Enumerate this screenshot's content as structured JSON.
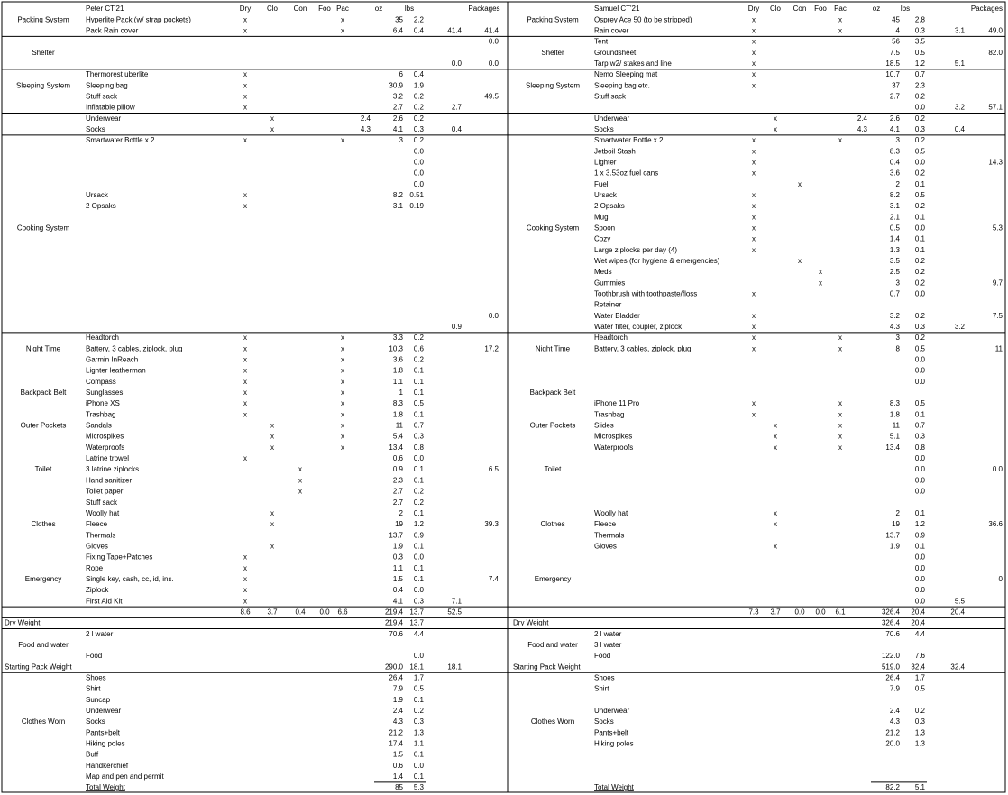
{
  "left": {
    "rows": [
      {
        "item": "Peter CT'21",
        "dry": "Dry",
        "clo": "Clo",
        "con": "Con",
        "foo": "Foo",
        "pac": "Pac",
        "oz": "oz",
        "lbs": "lbs",
        "pk": "Packages"
      },
      {
        "g": "Packing System",
        "item": "Hyperlite Pack (w/ strap pockets)",
        "dry": "x",
        "pac": "x",
        "oz": "35",
        "lbs": "2.2"
      },
      {
        "item": "Pack Rain cover",
        "dry": "x",
        "pac": "x",
        "oz": "6.4",
        "lbs": "0.4",
        "sub": "41.4",
        "pk": "41.4"
      },
      {
        "pk": "0.0"
      },
      {
        "g": "Shelter"
      },
      {
        "sub": "0.0",
        "pk": "0.0"
      },
      {
        "item": "Thermorest uberlite",
        "dry": "x",
        "oz": "6",
        "lbs": "0.4"
      },
      {
        "g": "Sleeping System",
        "item": "Sleeping bag",
        "dry": "x",
        "oz": "30.9",
        "lbs": "1.9"
      },
      {
        "item": "Stuff sack",
        "dry": "x",
        "oz": "3.2",
        "lbs": "0.2",
        "pk": "49.5"
      },
      {
        "item": "Inflatable pillow",
        "dry": "x",
        "oz": "2.7",
        "lbs": "0.2",
        "sub": "2.7"
      },
      {
        "item": "Underwear",
        "clo": "x",
        "ext": "2.4",
        "oz": "2.6",
        "lbs": "0.2"
      },
      {
        "item": "Socks",
        "clo": "x",
        "ext": "4.3",
        "oz": "4.1",
        "lbs": "0.3",
        "sub": "0.4"
      },
      {
        "item": "Smartwater Bottle x 2",
        "dry": "x",
        "pac": "x",
        "oz": "3",
        "lbs": "0.2"
      },
      {
        "lbs": "0.0"
      },
      {
        "lbs": "0.0"
      },
      {
        "lbs": "0.0"
      },
      {
        "lbs": "0.0"
      },
      {
        "item": "Ursack",
        "dry": "x",
        "oz": "8.2",
        "lbs": "0.51"
      },
      {
        "item": "2 Opsaks",
        "dry": "x",
        "oz": "3.1",
        "lbs": "0.19"
      },
      {},
      {
        "g": "Cooking System"
      },
      {},
      {},
      {},
      {},
      {},
      {},
      {},
      {
        "pk": "0.0"
      },
      {
        "sub": "0.9"
      },
      {
        "item": "Headtorch",
        "dry": "x",
        "pac": "x",
        "oz": "3.3",
        "lbs": "0.2"
      },
      {
        "g": "Night Time",
        "item": "Battery, 3 cables, ziplock, plug",
        "dry": "x",
        "pac": "x",
        "oz": "10.3",
        "lbs": "0.6",
        "pk": "17.2"
      },
      {
        "item": "Garmin InReach",
        "dry": "x",
        "pac": "x",
        "oz": "3.6",
        "lbs": "0.2"
      },
      {
        "item": "Lighter leatherman",
        "dry": "x",
        "pac": "x",
        "oz": "1.8",
        "lbs": "0.1"
      },
      {
        "item": "Compass",
        "dry": "x",
        "pac": "x",
        "oz": "1.1",
        "lbs": "0.1"
      },
      {
        "g": "Backpack Belt",
        "item": "Sunglasses",
        "dry": "x",
        "pac": "x",
        "oz": "1",
        "lbs": "0.1"
      },
      {
        "item": "iPhone XS",
        "dry": "x",
        "pac": "x",
        "oz": "8.3",
        "lbs": "0.5"
      },
      {
        "item": "Trashbag",
        "dry": "x",
        "pac": "x",
        "oz": "1.8",
        "lbs": "0.1"
      },
      {
        "g": "Outer Pockets",
        "item": "Sandals",
        "clo": "x",
        "pac": "x",
        "oz": "11",
        "lbs": "0.7"
      },
      {
        "item": "Microspikes",
        "clo": "x",
        "pac": "x",
        "oz": "5.4",
        "lbs": "0.3"
      },
      {
        "item": "Waterproofs",
        "clo": "x",
        "pac": "x",
        "oz": "13.4",
        "lbs": "0.8"
      },
      {
        "item": "Latrine trowel",
        "dry": "x",
        "oz": "0.6",
        "lbs": "0.0"
      },
      {
        "g": "Toilet",
        "item": "3 latrine ziplocks",
        "con": "x",
        "oz": "0.9",
        "lbs": "0.1",
        "pk": "6.5"
      },
      {
        "item": "Hand sanitizer",
        "con": "x",
        "oz": "2.3",
        "lbs": "0.1"
      },
      {
        "item": "Toilet paper",
        "con": "x",
        "oz": "2.7",
        "lbs": "0.2"
      },
      {
        "item": "Stuff sack",
        "oz": "2.7",
        "lbs": "0.2"
      },
      {
        "item": "Woolly hat",
        "clo": "x",
        "oz": "2",
        "lbs": "0.1"
      },
      {
        "g": "Clothes",
        "item": "Fleece",
        "clo": "x",
        "oz": "19",
        "lbs": "1.2",
        "pk": "39.3"
      },
      {
        "item": "Thermals",
        "oz": "13.7",
        "lbs": "0.9"
      },
      {
        "item": "Gloves",
        "clo": "x",
        "oz": "1.9",
        "lbs": "0.1"
      },
      {
        "item": "Fixing Tape+Patches",
        "dry": "x",
        "oz": "0.3",
        "lbs": "0.0"
      },
      {
        "item": "Rope",
        "dry": "x",
        "oz": "1.1",
        "lbs": "0.1"
      },
      {
        "g": "Emergency",
        "item": "Single key, cash, cc, id, ins.",
        "dry": "x",
        "oz": "1.5",
        "lbs": "0.1",
        "pk": "7.4"
      },
      {
        "item": "Ziplock",
        "dry": "x",
        "oz": "0.4",
        "lbs": "0.0"
      },
      {
        "item": "First Aid Kit",
        "dry": "x",
        "oz": "4.1",
        "lbs": "0.3",
        "sub": "7.1"
      },
      {
        "dry": "8.6",
        "clo": "3.7",
        "con": "0.4",
        "foo": "0.0",
        "pac": "6.6",
        "oz": "219.4",
        "lbs": "13.7",
        "sub": "52.5"
      },
      {
        "head": "Dry Weight",
        "oz": "219.4",
        "lbs": "13.7"
      },
      {
        "item": "2 l water",
        "oz": "70.6",
        "lbs": "4.4"
      },
      {
        "g": "Food and water"
      },
      {
        "item": "Food",
        "lbs": "0.0"
      },
      {
        "head": "Starting Pack Weight",
        "oz": "290.0",
        "lbs": "18.1",
        "sub": "18.1"
      },
      {
        "item": "Shoes",
        "oz": "26.4",
        "lbs": "1.7"
      },
      {
        "item": "Shirt",
        "oz": "7.9",
        "lbs": "0.5"
      },
      {
        "item": "Suncap",
        "oz": "1.9",
        "lbs": "0.1"
      },
      {
        "item": "Underwear",
        "oz": "2.4",
        "lbs": "0.2"
      },
      {
        "g": "Clothes Worn",
        "item": "Socks",
        "oz": "4.3",
        "lbs": "0.3"
      },
      {
        "item": "Pants+belt",
        "oz": "21.2",
        "lbs": "1.3"
      },
      {
        "item": "Hiking poles",
        "oz": "17.4",
        "lbs": "1.1"
      },
      {
        "item": "Buff",
        "oz": "1.5",
        "lbs": "0.1"
      },
      {
        "item": "Handkerchief",
        "oz": "0.6",
        "lbs": "0.0"
      },
      {
        "item": "Map and pen and permit",
        "oz": "1.4",
        "lbs": "0.1"
      },
      {
        "item": "Total Weight",
        "oz": "85",
        "lbs": "5.3"
      }
    ]
  },
  "right": {
    "rows": [
      {
        "item": "Samuel CT'21",
        "dry": "Dry",
        "clo": "Clo",
        "con": "Con",
        "foo": "Foo",
        "pac": "Pac",
        "oz": "oz",
        "lbs": "lbs",
        "pk": "Packages"
      },
      {
        "g": "Packing System",
        "item": "Osprey Ace 50 (to be stripped)",
        "dry": "x",
        "pac": "x",
        "oz": "45",
        "lbs": "2.8"
      },
      {
        "item": "Rain cover",
        "dry": "x",
        "pac": "x",
        "oz": "4",
        "lbs": "0.3",
        "sub": "3.1",
        "pk": "49.0"
      },
      {
        "item": "Tent",
        "dry": "x",
        "oz": "56",
        "lbs": "3.5"
      },
      {
        "g": "Shelter",
        "item": "Groundsheet",
        "dry": "x",
        "oz": "7.5",
        "lbs": "0.5",
        "pk": "82.0"
      },
      {
        "item": "Tarp w2/ stakes and line",
        "dry": "x",
        "oz": "18.5",
        "lbs": "1.2",
        "sub": "5.1"
      },
      {
        "item": "Nemo Sleeping mat",
        "dry": "x",
        "oz": "10.7",
        "lbs": "0.7"
      },
      {
        "g": "Sleeping System",
        "item": "Sleeping bag etc.",
        "dry": "x",
        "oz": "37",
        "lbs": "2.3"
      },
      {
        "item": "Stuff sack",
        "oz": "2.7",
        "lbs": "0.2"
      },
      {
        "lbs": "0.0",
        "sub": "3.2",
        "pk": "57.1"
      },
      {
        "item": "Underwear",
        "clo": "x",
        "ext": "2.4",
        "oz": "2.6",
        "lbs": "0.2"
      },
      {
        "item": "Socks",
        "clo": "x",
        "ext": "4.3",
        "oz": "4.1",
        "lbs": "0.3",
        "sub": "0.4"
      },
      {
        "item": "Smartwater Bottle x 2",
        "dry": "x",
        "pac": "x",
        "oz": "3",
        "lbs": "0.2"
      },
      {
        "item": "Jetboil Stash",
        "dry": "x",
        "oz": "8.3",
        "lbs": "0.5"
      },
      {
        "item": "Lighter",
        "dry": "x",
        "oz": "0.4",
        "lbs": "0.0",
        "pk": "14.3"
      },
      {
        "item": "1 x 3.53oz fuel cans",
        "dry": "x",
        "oz": "3.6",
        "lbs": "0.2"
      },
      {
        "item": "Fuel",
        "con": "x",
        "oz": "2",
        "lbs": "0.1"
      },
      {
        "item": "Ursack",
        "dry": "x",
        "oz": "8.2",
        "lbs": "0.5"
      },
      {
        "item": "2 Opsaks",
        "dry": "x",
        "oz": "3.1",
        "lbs": "0.2"
      },
      {
        "item": "Mug",
        "dry": "x",
        "oz": "2.1",
        "lbs": "0.1"
      },
      {
        "g": "Cooking System",
        "item": "Spoon",
        "dry": "x",
        "oz": "0.5",
        "lbs": "0.0",
        "pk": "5.3"
      },
      {
        "item": "Cozy",
        "dry": "x",
        "oz": "1.4",
        "lbs": "0.1"
      },
      {
        "item": "Large ziplocks per day (4)",
        "dry": "x",
        "oz": "1.3",
        "lbs": "0.1"
      },
      {
        "item": "Wet wipes (for hygiene & emergencies)",
        "con": "x",
        "oz": "3.5",
        "lbs": "0.2"
      },
      {
        "item": "Meds",
        "foo": "x",
        "oz": "2.5",
        "lbs": "0.2"
      },
      {
        "item": "Gummies",
        "foo": "x",
        "oz": "3",
        "lbs": "0.2",
        "pk": "9.7"
      },
      {
        "item": "Toothbrush with toothpaste/floss",
        "dry": "x",
        "oz": "0.7",
        "lbs": "0.0"
      },
      {
        "item": "Retainer"
      },
      {
        "item": "Water Bladder",
        "dry": "x",
        "oz": "3.2",
        "lbs": "0.2",
        "pk": "7.5"
      },
      {
        "item": "Water filter, coupler, ziplock",
        "dry": "x",
        "oz": "4.3",
        "lbs": "0.3",
        "sub": "3.2"
      },
      {
        "item": "Headtorch",
        "dry": "x",
        "pac": "x",
        "oz": "3",
        "lbs": "0.2"
      },
      {
        "g": "Night Time",
        "item": "Battery, 3 cables, ziplock, plug",
        "dry": "x",
        "pac": "x",
        "oz": "8",
        "lbs": "0.5",
        "pk": "11"
      },
      {
        "lbs": "0.0"
      },
      {
        "lbs": "0.0"
      },
      {
        "lbs": "0.0"
      },
      {
        "g": "Backpack Belt"
      },
      {
        "item": "iPhone 11 Pro",
        "dry": "x",
        "pac": "x",
        "oz": "8.3",
        "lbs": "0.5"
      },
      {
        "item": "Trashbag",
        "dry": "x",
        "pac": "x",
        "oz": "1.8",
        "lbs": "0.1"
      },
      {
        "g": "Outer Pockets",
        "item": "Slides",
        "clo": "x",
        "pac": "x",
        "oz": "11",
        "lbs": "0.7"
      },
      {
        "item": "Microspikes",
        "clo": "x",
        "pac": "x",
        "oz": "5.1",
        "lbs": "0.3"
      },
      {
        "item": "Waterproofs",
        "clo": "x",
        "pac": "x",
        "oz": "13.4",
        "lbs": "0.8"
      },
      {
        "lbs": "0.0"
      },
      {
        "g": "Toilet",
        "lbs": "0.0",
        "pk": "0.0"
      },
      {
        "lbs": "0.0"
      },
      {
        "lbs": "0.0"
      },
      {},
      {
        "item": "Woolly hat",
        "clo": "x",
        "oz": "2",
        "lbs": "0.1"
      },
      {
        "g": "Clothes",
        "item": "Fleece",
        "clo": "x",
        "oz": "19",
        "lbs": "1.2",
        "pk": "36.6"
      },
      {
        "item": "Thermals",
        "oz": "13.7",
        "lbs": "0.9"
      },
      {
        "item": "Gloves",
        "clo": "x",
        "oz": "1.9",
        "lbs": "0.1"
      },
      {
        "lbs": "0.0"
      },
      {
        "lbs": "0.0"
      },
      {
        "g": "Emergency",
        "lbs": "0.0",
        "pk": "0"
      },
      {
        "lbs": "0.0"
      },
      {
        "lbs": "0.0",
        "sub": "5.5"
      },
      {
        "dry": "7.3",
        "clo": "3.7",
        "con": "0.0",
        "foo": "0.0",
        "pac": "6.1",
        "oz": "326.4",
        "lbs": "20.4",
        "sub": "20.4"
      },
      {
        "head": "Dry Weight",
        "oz": "326.4",
        "lbs": "20.4"
      },
      {
        "item": "2 l water",
        "oz": "70.6",
        "lbs": "4.4"
      },
      {
        "g": "Food and water",
        "item": "3 l water"
      },
      {
        "item": "Food",
        "oz": "122.0",
        "lbs": "7.6"
      },
      {
        "head": "Starting Pack Weight",
        "oz": "519.0",
        "lbs": "32.4",
        "sub": "32.4"
      },
      {
        "item": "Shoes",
        "oz": "26.4",
        "lbs": "1.7"
      },
      {
        "item": "Shirt",
        "oz": "7.9",
        "lbs": "0.5"
      },
      {},
      {
        "item": "Underwear",
        "oz": "2.4",
        "lbs": "0.2"
      },
      {
        "g": "Clothes Worn",
        "item": "Socks",
        "oz": "4.3",
        "lbs": "0.3"
      },
      {
        "item": "Pants+belt",
        "oz": "21.2",
        "lbs": "1.3"
      },
      {
        "item": "Hiking poles",
        "oz": "20.0",
        "lbs": "1.3"
      },
      {},
      {},
      {},
      {
        "item": "Total Weight",
        "oz": "82.2",
        "lbs": "5.1"
      }
    ]
  }
}
